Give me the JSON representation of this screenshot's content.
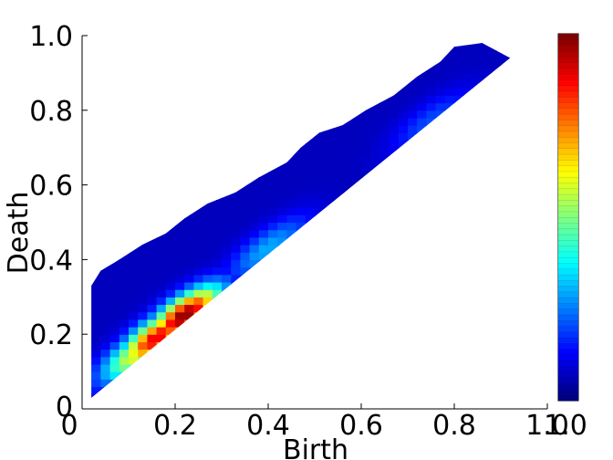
{
  "chart_data": {
    "type": "heatmap",
    "title": "",
    "xlabel": "Birth",
    "ylabel": "Death",
    "xlim": [
      0,
      1.0
    ],
    "ylim": [
      0,
      1.0
    ],
    "x_ticks": [
      "0",
      "0.2",
      "0.4",
      "0.6",
      "0.8",
      "1.0"
    ],
    "y_ticks": [
      "0",
      "0.2",
      "0.4",
      "0.6",
      "0.8",
      "1.0"
    ],
    "grid": false,
    "colormap": "jet",
    "colorbar": {
      "range": [
        0,
        1.0
      ],
      "label": "1.0"
    },
    "region": {
      "description_points": {
        "upper_boundary": [
          [
            0.02,
            0.33
          ],
          [
            0.04,
            0.37
          ],
          [
            0.08,
            0.4
          ],
          [
            0.13,
            0.44
          ],
          [
            0.18,
            0.47
          ],
          [
            0.22,
            0.51
          ],
          [
            0.27,
            0.55
          ],
          [
            0.33,
            0.58
          ],
          [
            0.38,
            0.62
          ],
          [
            0.44,
            0.66
          ],
          [
            0.47,
            0.7
          ],
          [
            0.51,
            0.74
          ],
          [
            0.56,
            0.76
          ],
          [
            0.61,
            0.8
          ],
          [
            0.67,
            0.84
          ],
          [
            0.72,
            0.89
          ],
          [
            0.77,
            0.93
          ],
          [
            0.8,
            0.97
          ],
          [
            0.86,
            0.98
          ],
          [
            0.92,
            0.94
          ]
        ],
        "lower_boundary": [
          [
            0.02,
            0.03
          ],
          [
            0.92,
            0.94
          ]
        ]
      }
    },
    "density_peaks": [
      {
        "x": 0.22,
        "y": 0.25,
        "value": 1.0
      },
      {
        "x": 0.16,
        "y": 0.19,
        "value": 0.9
      },
      {
        "x": 0.12,
        "y": 0.15,
        "value": 0.6
      },
      {
        "x": 0.4,
        "y": 0.43,
        "value": 0.25
      },
      {
        "x": 0.75,
        "y": 0.77,
        "value": 0.15
      }
    ]
  }
}
